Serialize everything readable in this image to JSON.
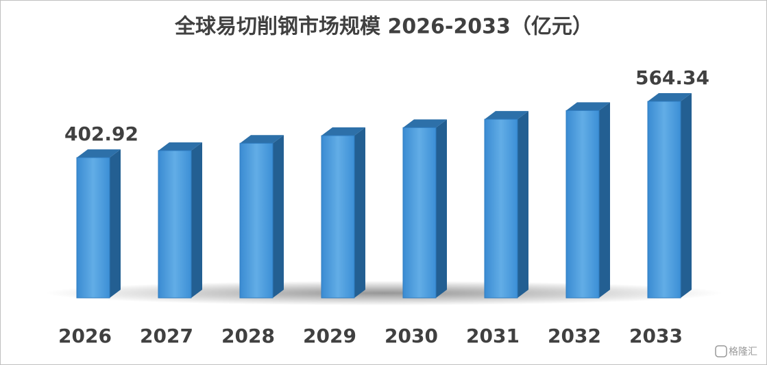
{
  "chart_data": {
    "type": "bar3d",
    "title": "全球易切削钢市场规模 2026-2033（亿元）",
    "categories": [
      "2026",
      "2027",
      "2028",
      "2029",
      "2030",
      "2031",
      "2032",
      "2033"
    ],
    "values": [
      402.92,
      423,
      444,
      466,
      489,
      513,
      538,
      564.34
    ],
    "value_labels": [
      "402.92",
      null,
      null,
      null,
      null,
      null,
      null,
      "564.34"
    ],
    "color": "#3d8fd6",
    "watermark": "格隆汇"
  }
}
